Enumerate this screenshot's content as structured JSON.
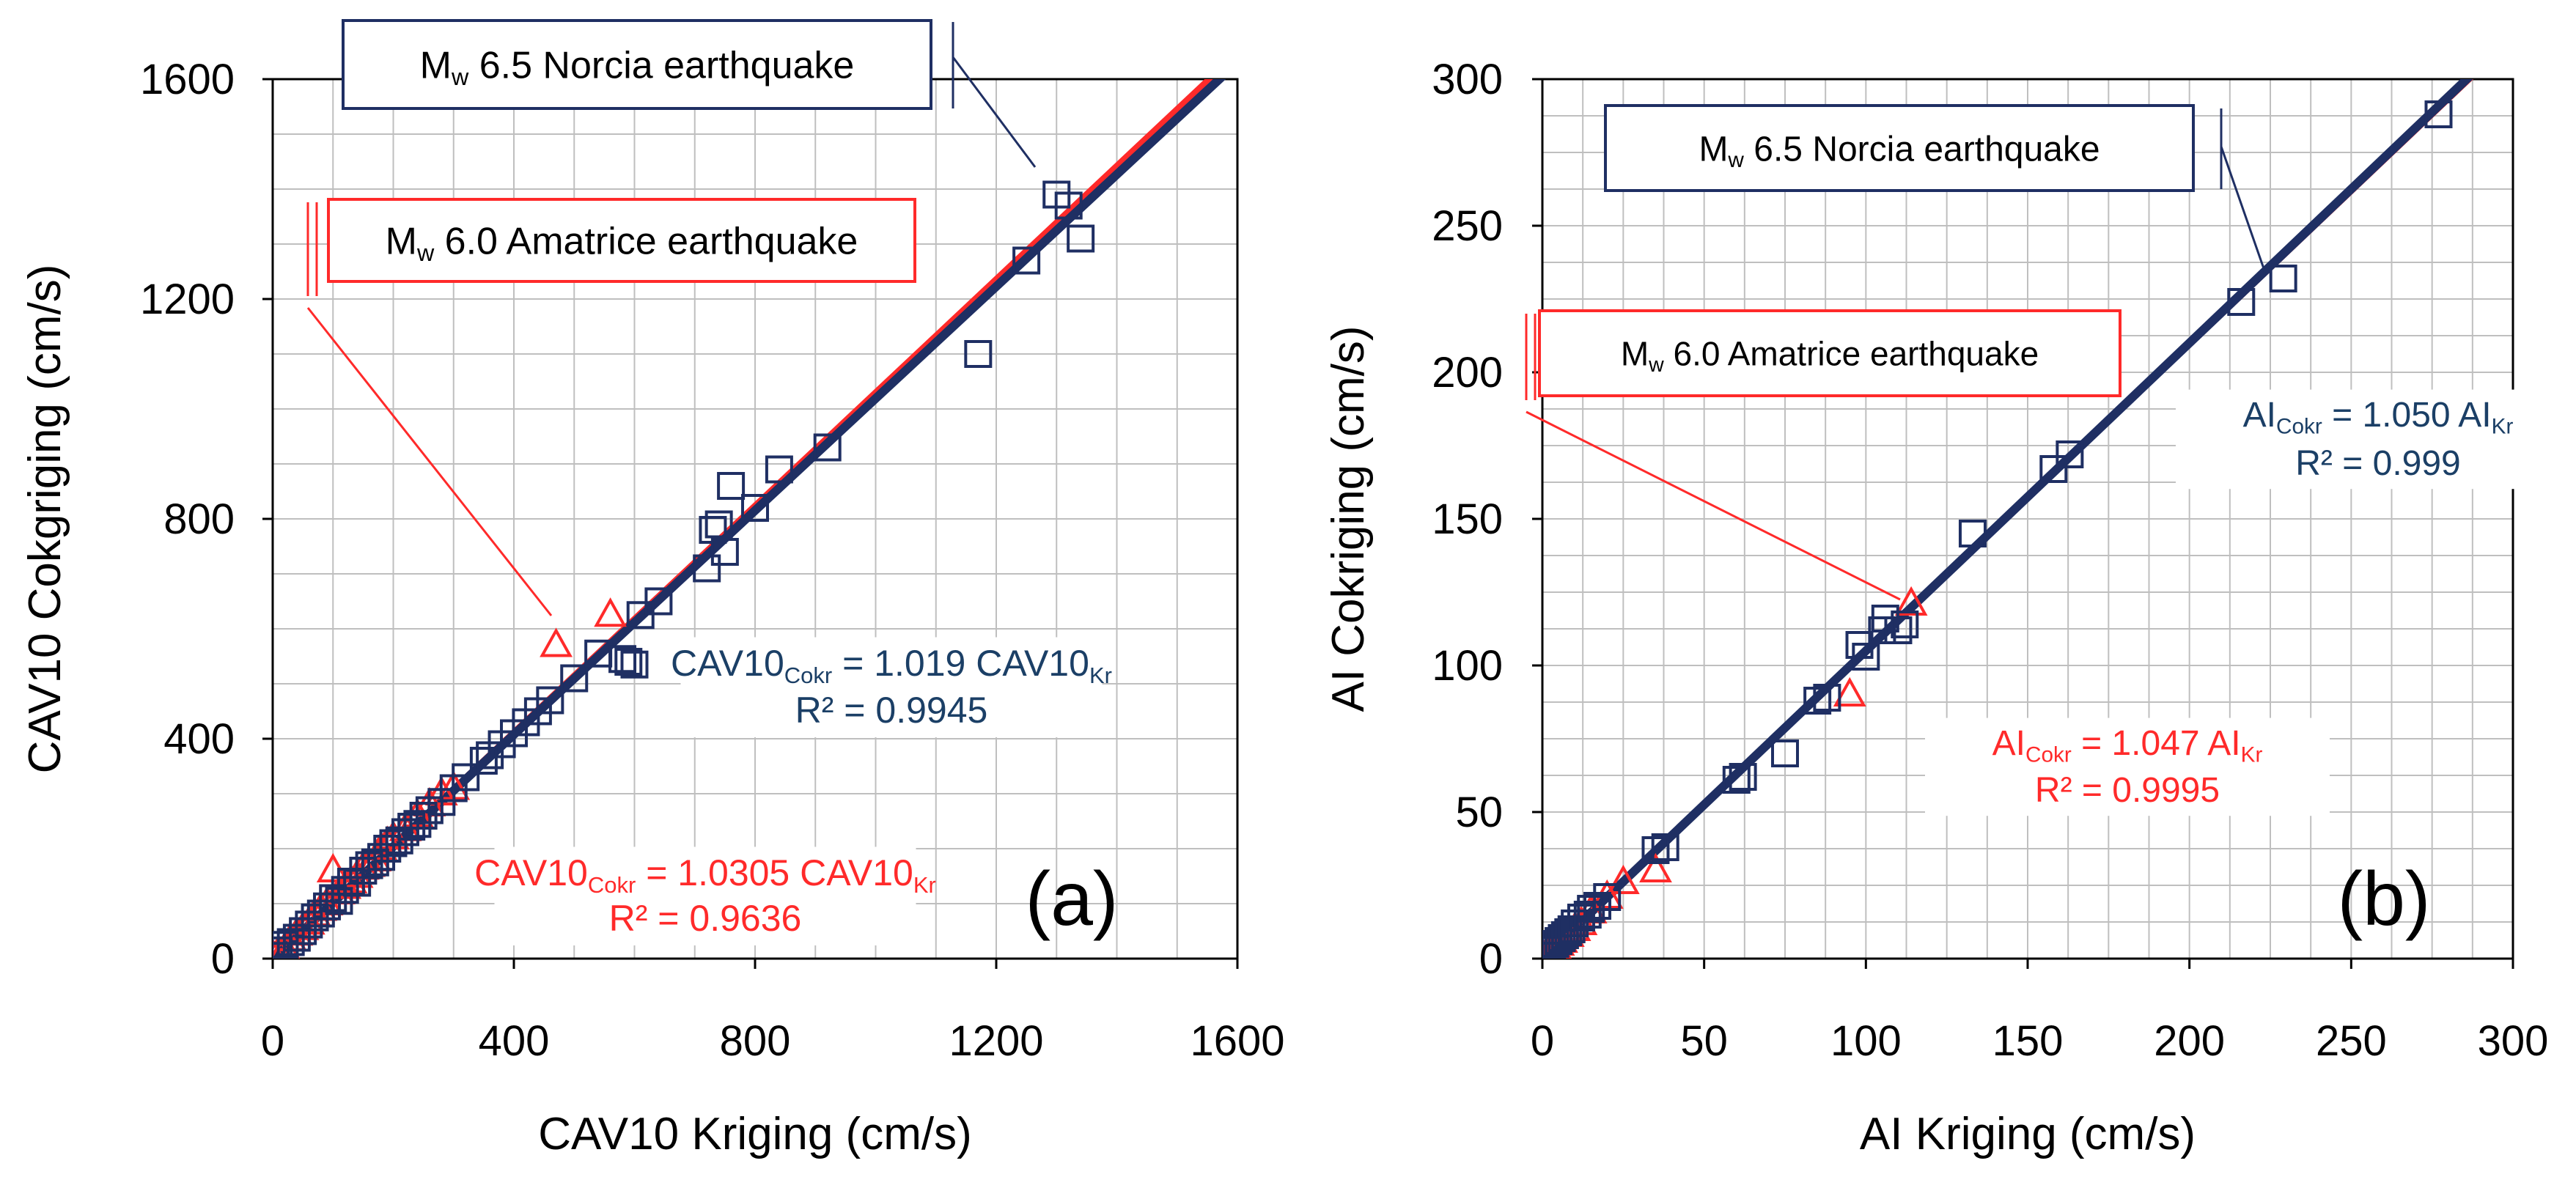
{
  "colors": {
    "navy": "#1F2F63",
    "red": "#FF2A2A",
    "eq_blue": "#1B3F66",
    "grid": "#BFBFBF",
    "axis": "#000000"
  },
  "chart_data": [
    {
      "type": "scatter",
      "panel_label": "(a)",
      "xlabel": "CAV10 Kriging (cm/s)",
      "ylabel": "CAV10 Cokgriging (cm/s)",
      "xlim": [
        0,
        1600
      ],
      "ylim": [
        0,
        1600
      ],
      "xticks": [
        0,
        400,
        800,
        1200,
        1600
      ],
      "yticks": [
        0,
        400,
        800,
        1200,
        1600
      ],
      "xtick_labels": [
        "0",
        "400",
        "800",
        "1200",
        "1600"
      ],
      "ytick_labels": [
        "0",
        "400",
        "800",
        "1200",
        "1600"
      ],
      "grid_step": 100,
      "series": [
        {
          "name": "Norcia",
          "event": {
            "prefix": "M",
            "sub": "w",
            "text": " 6.5 Norcia earthquake"
          },
          "color_key": "navy",
          "marker": "square",
          "fit": {
            "slope": 1.019
          },
          "equation": {
            "lhs": "CAV10",
            "lhs_sub": "Cokr",
            "mid": " = 1.019 CAV10",
            "rhs_sub": "Kr",
            "r2": "R² = 0.9945"
          },
          "points": [
            [
              5,
              5
            ],
            [
              10,
              15
            ],
            [
              20,
              25
            ],
            [
              30,
              30
            ],
            [
              40,
              38
            ],
            [
              50,
              50
            ],
            [
              60,
              62
            ],
            [
              70,
              75
            ],
            [
              80,
              82
            ],
            [
              90,
              95
            ],
            [
              100,
              110
            ],
            [
              110,
              105
            ],
            [
              120,
              125
            ],
            [
              130,
              140
            ],
            [
              140,
              138
            ],
            [
              150,
              160
            ],
            [
              160,
              170
            ],
            [
              170,
              175
            ],
            [
              180,
              185
            ],
            [
              190,
              200
            ],
            [
              200,
              210
            ],
            [
              210,
              215
            ],
            [
              220,
              230
            ],
            [
              230,
              240
            ],
            [
              240,
              245
            ],
            [
              250,
              260
            ],
            [
              260,
              270
            ],
            [
              280,
              285
            ],
            [
              300,
              310
            ],
            [
              320,
              330
            ],
            [
              350,
              360
            ],
            [
              360,
              370
            ],
            [
              380,
              390
            ],
            [
              400,
              410
            ],
            [
              420,
              430
            ],
            [
              440,
              450
            ],
            [
              460,
              470
            ],
            [
              500,
              510
            ],
            [
              540,
              555
            ],
            [
              580,
              545
            ],
            [
              590,
              540
            ],
            [
              600,
              535
            ],
            [
              610,
              625
            ],
            [
              640,
              650
            ],
            [
              720,
              710
            ],
            [
              730,
              780
            ],
            [
              740,
              790
            ],
            [
              750,
              740
            ],
            [
              760,
              860
            ],
            [
              800,
              820
            ],
            [
              840,
              890
            ],
            [
              920,
              930
            ],
            [
              1170,
              1100
            ],
            [
              1250,
              1270
            ],
            [
              1300,
              1390
            ],
            [
              1320,
              1370
            ],
            [
              1340,
              1310
            ]
          ]
        },
        {
          "name": "Amatrice",
          "event": {
            "prefix": "M",
            "sub": "w",
            "text": " 6.0 Amatrice earthquake"
          },
          "color_key": "red",
          "marker": "triangle",
          "fit": {
            "slope": 1.0305
          },
          "equation": {
            "lhs": "CAV10",
            "lhs_sub": "Cokr",
            "mid": " = 1.0305 CAV10",
            "rhs_sub": "Kr",
            "r2": "R² = 0.9636"
          },
          "points": [
            [
              2,
              2
            ],
            [
              10,
              12
            ],
            [
              20,
              18
            ],
            [
              30,
              35
            ],
            [
              40,
              45
            ],
            [
              50,
              55
            ],
            [
              60,
              65
            ],
            [
              70,
              80
            ],
            [
              80,
              90
            ],
            [
              90,
              100
            ],
            [
              100,
              160
            ],
            [
              110,
              120
            ],
            [
              120,
              130
            ],
            [
              130,
              140
            ],
            [
              140,
              150
            ],
            [
              150,
              165
            ],
            [
              160,
              170
            ],
            [
              170,
              180
            ],
            [
              180,
              200
            ],
            [
              190,
              210
            ],
            [
              200,
              220
            ],
            [
              220,
              235
            ],
            [
              240,
              260
            ],
            [
              260,
              280
            ],
            [
              280,
              300
            ],
            [
              300,
              310
            ],
            [
              470,
              570
            ],
            [
              560,
              625
            ]
          ]
        }
      ]
    },
    {
      "type": "scatter",
      "panel_label": "(b)",
      "xlabel": "AI Kriging (cm/s)",
      "ylabel": "AI Cokriging (cm/s)",
      "xlim": [
        0,
        300
      ],
      "ylim": [
        0,
        300
      ],
      "xticks": [
        0,
        50,
        100,
        150,
        200,
        250,
        300
      ],
      "yticks": [
        0,
        50,
        100,
        150,
        200,
        250,
        300
      ],
      "xtick_labels": [
        "0",
        "50",
        "100",
        "150",
        "200",
        "250",
        "300"
      ],
      "ytick_labels": [
        "0",
        "50",
        "100",
        "150",
        "200",
        "250",
        "300"
      ],
      "grid_step": 12.5,
      "series": [
        {
          "name": "Norcia",
          "event": {
            "prefix": "M",
            "sub": "w",
            "text": " 6.5 Norcia earthquake"
          },
          "color_key": "navy",
          "marker": "square",
          "fit": {
            "slope": 1.05
          },
          "equation": {
            "lhs": "AI",
            "lhs_sub": "Cokr",
            "mid": " = 1.050 AI",
            "rhs_sub": "Kr",
            "r2": "R² = 0.999"
          },
          "points": [
            [
              1,
              1
            ],
            [
              2,
              3
            ],
            [
              3,
              4
            ],
            [
              4,
              5
            ],
            [
              5,
              6
            ],
            [
              6,
              7
            ],
            [
              7,
              8
            ],
            [
              8,
              9
            ],
            [
              9,
              10
            ],
            [
              10,
              12
            ],
            [
              12,
              14
            ],
            [
              14,
              15
            ],
            [
              15,
              17
            ],
            [
              17,
              18
            ],
            [
              20,
              21
            ],
            [
              35,
              37
            ],
            [
              38,
              38
            ],
            [
              60,
              61
            ],
            [
              62,
              62
            ],
            [
              75,
              70
            ],
            [
              85,
              88
            ],
            [
              88,
              89
            ],
            [
              98,
              107
            ],
            [
              100,
              103
            ],
            [
              105,
              112
            ],
            [
              106,
              116
            ],
            [
              110,
              112
            ],
            [
              112,
              114
            ],
            [
              133,
              145
            ],
            [
              158,
              167
            ],
            [
              163,
              172
            ],
            [
              216,
              224
            ],
            [
              229,
              232
            ],
            [
              277,
              288
            ]
          ]
        },
        {
          "name": "Amatrice",
          "event": {
            "prefix": "M",
            "sub": "w",
            "text": " 6.0 Amatrice earthquake"
          },
          "color_key": "red",
          "marker": "triangle",
          "fit": {
            "slope": 1.047
          },
          "equation": {
            "lhs": "AI",
            "lhs_sub": "Cokr",
            "mid": " = 1.047 AI",
            "rhs_sub": "Kr",
            "r2": "R² = 0.9995"
          },
          "points": [
            [
              0.5,
              0.5
            ],
            [
              1,
              1
            ],
            [
              2,
              2
            ],
            [
              3,
              3
            ],
            [
              4,
              4
            ],
            [
              5,
              5
            ],
            [
              6,
              6
            ],
            [
              8,
              8
            ],
            [
              10,
              10
            ],
            [
              12,
              12
            ],
            [
              15,
              16
            ],
            [
              20,
              21
            ],
            [
              25,
              26
            ],
            [
              35,
              30
            ],
            [
              95,
              90
            ],
            [
              114,
              121
            ]
          ]
        }
      ]
    }
  ]
}
